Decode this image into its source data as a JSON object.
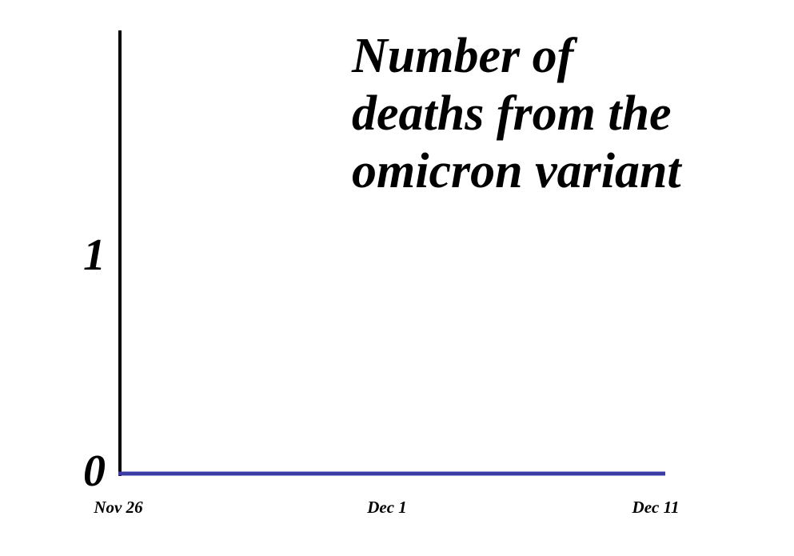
{
  "chart_data": {
    "type": "line",
    "title": "Number of deaths from the omicron variant",
    "categories": [
      "Nov 26",
      "Dec 1",
      "Dec 11"
    ],
    "series": [
      {
        "color": "#3b3ba3",
        "values": [
          0,
          0,
          0
        ]
      }
    ],
    "ylim": [
      0,
      2
    ],
    "yticks": [
      0,
      1
    ],
    "grid": false
  }
}
